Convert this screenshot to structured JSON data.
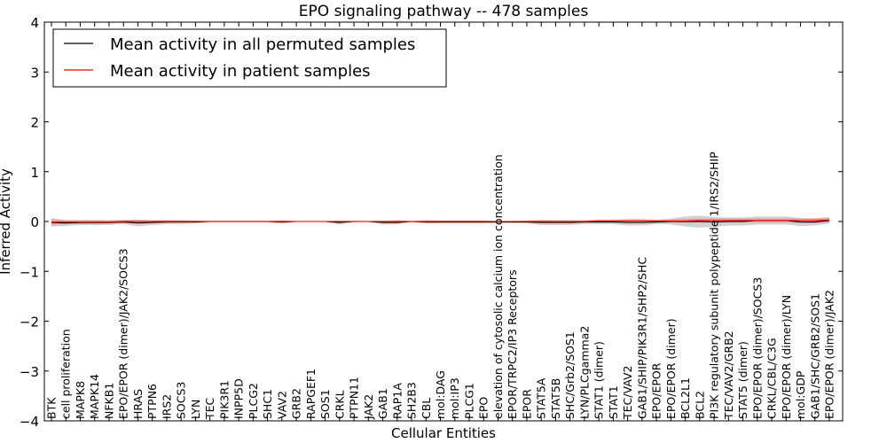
{
  "chart_data": {
    "type": "line",
    "title": "EPO signaling pathway -- 478 samples",
    "xlabel": "Cellular Entities",
    "ylabel": "Inferred Activity",
    "ylim": [
      -4,
      4
    ],
    "yticks": [
      -4,
      -3,
      -2,
      -1,
      0,
      1,
      2,
      3,
      4
    ],
    "ytick_labels": [
      "−4",
      "−3",
      "−2",
      "−1",
      "0",
      "1",
      "2",
      "3",
      "4"
    ],
    "grid": false,
    "legend_position": "top-left",
    "categories": [
      "BTK",
      "cell proliferation",
      "MAPK8",
      "MAPK14",
      "NFKB1",
      "EPO/EPOR (dimer)/JAK2/SOCS3",
      "HRAS",
      "PTPN6",
      "IRS2",
      "SOCS3",
      "LYN",
      "TEC",
      "PIK3R1",
      "INPP5D",
      "PLCG2",
      "SHC1",
      "VAV2",
      "GRB2",
      "RAPGEF1",
      "SOS1",
      "CRKL",
      "PTPN11",
      "JAK2",
      "GAB1",
      "RAP1A",
      "SH2B3",
      "CBL",
      "mol:DAG",
      "mol:IP3",
      "PLCG1",
      "EPO",
      "elevation of cytosolic calcium ion concentration",
      "EPOR/TRPC2/IP3 Receptors",
      "EPOR",
      "STAT5A",
      "STAT5B",
      "SHC/Grb2/SOS1",
      "LYN/PLCgamma2",
      "STAT1 (dimer)",
      "STAT1",
      "TEC/VAV2",
      "GAB1/SHIP/PIK3R1/SHP2/SHC",
      "EPO/EPOR",
      "EPO/EPOR (dimer)",
      "BCL2L1",
      "BCL2",
      "PI3K regulatory subunit polypeptide 1/IRS2/SHIP",
      "TEC/VAV2/GRB2",
      "STAT5 (dimer)",
      "EPO/EPOR (dimer)/SOCS3",
      "CRKL/CBL/C3G",
      "EPO/EPOR (dimer)/LYN",
      "mol:GDP",
      "GAB1/SHC/GRB2/SOS1",
      "EPO/EPOR (dimer)/JAK2"
    ],
    "series": [
      {
        "name": "Mean activity in all permuted samples",
        "color": "#000000",
        "values": [
          -0.02,
          -0.03,
          -0.02,
          -0.02,
          -0.02,
          -0.01,
          -0.03,
          -0.02,
          -0.01,
          -0.01,
          -0.01,
          0.0,
          0.0,
          0.0,
          0.0,
          0.0,
          -0.01,
          0.0,
          0.0,
          0.0,
          -0.02,
          0.0,
          0.0,
          -0.02,
          -0.02,
          0.0,
          -0.01,
          -0.01,
          -0.01,
          -0.01,
          -0.01,
          -0.01,
          -0.01,
          -0.01,
          -0.02,
          -0.02,
          -0.02,
          -0.01,
          -0.01,
          -0.01,
          -0.02,
          -0.02,
          -0.01,
          0.0,
          0.0,
          0.0,
          -0.01,
          0.0,
          0.0,
          0.02,
          0.02,
          0.02,
          -0.01,
          -0.01,
          0.02
        ],
        "band": [
          0.08,
          0.06,
          0.05,
          0.05,
          0.05,
          0.04,
          0.07,
          0.05,
          0.04,
          0.04,
          0.03,
          0.02,
          0.02,
          0.02,
          0.02,
          0.02,
          0.03,
          0.01,
          0.01,
          0.01,
          0.04,
          0.02,
          0.01,
          0.04,
          0.04,
          0.01,
          0.03,
          0.03,
          0.03,
          0.03,
          0.03,
          0.02,
          0.02,
          0.03,
          0.05,
          0.05,
          0.05,
          0.04,
          0.04,
          0.04,
          0.06,
          0.06,
          0.04,
          0.06,
          0.1,
          0.12,
          0.1,
          0.08,
          0.08,
          0.08,
          0.08,
          0.08,
          0.08,
          0.07,
          0.06
        ]
      },
      {
        "name": "Mean activity in patient samples",
        "color": "#ff0000",
        "values": [
          -0.01,
          -0.01,
          -0.01,
          -0.01,
          -0.01,
          0.0,
          0.0,
          0.0,
          0.0,
          0.0,
          0.0,
          0.0,
          0.0,
          0.0,
          0.0,
          0.0,
          0.0,
          0.0,
          0.0,
          0.0,
          0.0,
          0.0,
          0.0,
          0.0,
          0.0,
          0.0,
          0.0,
          0.0,
          0.0,
          0.0,
          0.0,
          0.0,
          0.0,
          0.0,
          0.0,
          0.0,
          0.0,
          0.0,
          0.01,
          0.01,
          0.01,
          0.01,
          0.01,
          0.01,
          0.01,
          0.02,
          0.02,
          0.02,
          0.02,
          0.02,
          0.02,
          0.02,
          0.02,
          0.02,
          0.03
        ],
        "band": [
          0.06,
          0.04,
          0.04,
          0.04,
          0.03,
          0.03,
          0.03,
          0.02,
          0.03,
          0.02,
          0.02,
          0.01,
          0.01,
          0.01,
          0.01,
          0.01,
          0.03,
          0.01,
          0.01,
          0.01,
          0.01,
          0.01,
          0.01,
          0.01,
          0.03,
          0.01,
          0.03,
          0.02,
          0.02,
          0.02,
          0.02,
          0.01,
          0.01,
          0.02,
          0.03,
          0.02,
          0.02,
          0.02,
          0.03,
          0.03,
          0.04,
          0.04,
          0.03,
          0.03,
          0.04,
          0.04,
          0.04,
          0.04,
          0.04,
          0.04,
          0.04,
          0.04,
          0.04,
          0.05,
          0.05
        ]
      }
    ],
    "band_colors": [
      "#9a9a9a",
      "#ff6666"
    ]
  }
}
